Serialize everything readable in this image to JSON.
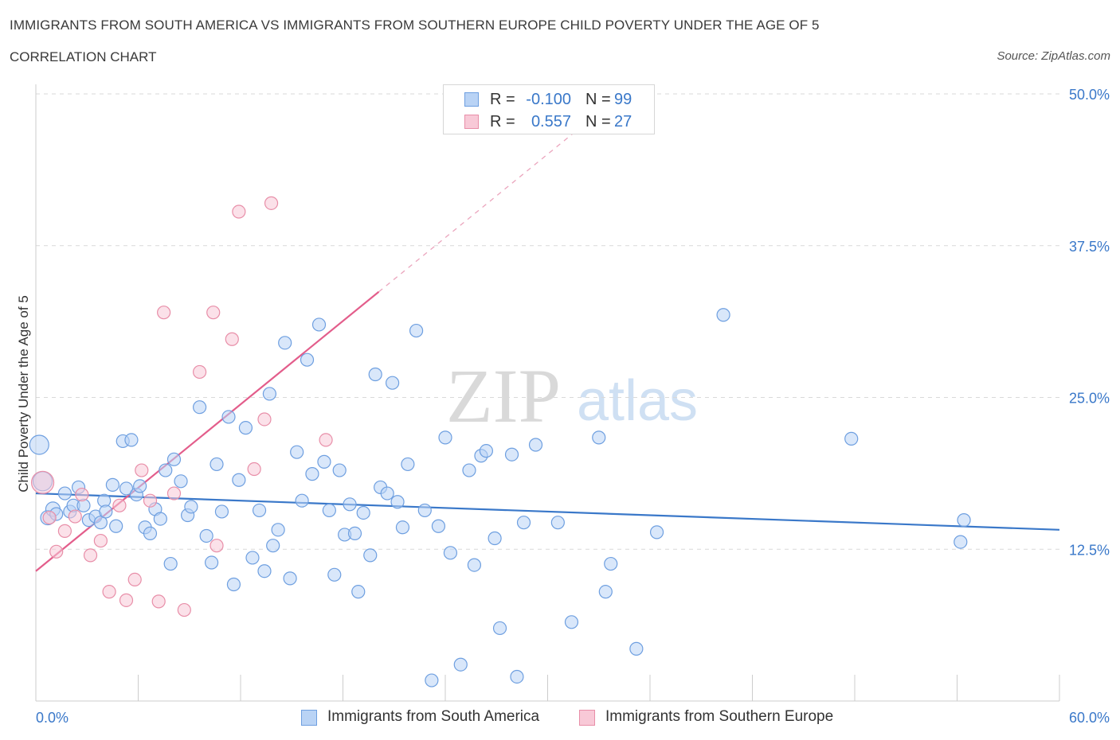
{
  "title": "IMMIGRANTS FROM SOUTH AMERICA VS IMMIGRANTS FROM SOUTHERN EUROPE CHILD POVERTY UNDER THE AGE OF 5",
  "subtitle": "CORRELATION CHART",
  "source": "Source: ZipAtlas.com",
  "watermark": {
    "zip": "ZIP",
    "atlas": "atlas"
  },
  "legend": {
    "r_label": "R =",
    "n_label": "N =",
    "series": [
      {
        "name": "Immigrants from South America",
        "r": "-0.100",
        "n": "99",
        "fill": "#b9d3f5",
        "stroke": "#6e9fe0"
      },
      {
        "name": "Immigrants from Southern Europe",
        "r": "0.557",
        "n": "27",
        "fill": "#f8c9d7",
        "stroke": "#e88ea8"
      }
    ]
  },
  "chart_data": {
    "type": "scatter",
    "title": "IMMIGRANTS FROM SOUTH AMERICA VS IMMIGRANTS FROM SOUTHERN EUROPE CHILD POVERTY UNDER THE AGE OF 5",
    "xlabel": "",
    "ylabel": "Child Poverty Under the Age of 5",
    "xlim": [
      0,
      60
    ],
    "ylim": [
      0,
      50
    ],
    "x_tick_labels": [
      "0.0%",
      "60.0%"
    ],
    "y_ticks": [
      12.5,
      25.0,
      37.5,
      50.0
    ],
    "y_tick_labels": [
      "12.5%",
      "25.0%",
      "37.5%",
      "50.0%"
    ],
    "grid": true,
    "series": [
      {
        "name": "Immigrants from South America",
        "color": "#3a78c9",
        "fill": "#b9d3f5",
        "trend": {
          "x0": 0,
          "y0": 17.1,
          "x1": 60,
          "y1": 14.1
        },
        "points": [
          [
            0.2,
            21.1,
            12
          ],
          [
            0.4,
            18.1,
            12
          ],
          [
            0.7,
            15.1,
            9
          ],
          [
            1.0,
            15.8,
            9
          ],
          [
            1.2,
            15.4,
            8
          ],
          [
            1.7,
            17.1,
            8
          ],
          [
            2.0,
            15.6,
            8
          ],
          [
            2.2,
            16.1,
            8
          ],
          [
            2.5,
            17.6,
            8
          ],
          [
            2.8,
            16.1,
            8
          ],
          [
            3.1,
            14.9,
            8
          ],
          [
            3.5,
            15.2,
            8
          ],
          [
            3.8,
            14.7,
            8
          ],
          [
            4.0,
            16.5,
            8
          ],
          [
            4.5,
            17.8,
            8
          ],
          [
            4.7,
            14.4,
            8
          ],
          [
            5.1,
            21.4,
            8
          ],
          [
            5.3,
            17.5,
            8
          ],
          [
            5.6,
            21.5,
            8
          ],
          [
            5.9,
            17.0,
            8
          ],
          [
            6.1,
            17.7,
            8
          ],
          [
            6.4,
            14.3,
            8
          ],
          [
            6.7,
            13.8,
            8
          ],
          [
            7.0,
            15.8,
            8
          ],
          [
            7.3,
            15.0,
            8
          ],
          [
            7.6,
            19.0,
            8
          ],
          [
            7.9,
            11.3,
            8
          ],
          [
            8.1,
            19.9,
            8
          ],
          [
            8.5,
            18.1,
            8
          ],
          [
            8.9,
            15.3,
            8
          ],
          [
            9.1,
            16.0,
            8
          ],
          [
            9.6,
            24.2,
            8
          ],
          [
            10.0,
            13.6,
            8
          ],
          [
            10.3,
            11.4,
            8
          ],
          [
            10.6,
            19.5,
            8
          ],
          [
            10.9,
            15.6,
            8
          ],
          [
            11.3,
            23.4,
            8
          ],
          [
            11.6,
            9.6,
            8
          ],
          [
            11.9,
            18.2,
            8
          ],
          [
            12.3,
            22.5,
            8
          ],
          [
            12.7,
            11.8,
            8
          ],
          [
            13.1,
            15.7,
            8
          ],
          [
            13.4,
            10.7,
            8
          ],
          [
            13.7,
            25.3,
            8
          ],
          [
            13.9,
            12.8,
            8
          ],
          [
            14.2,
            14.1,
            8
          ],
          [
            14.6,
            29.5,
            8
          ],
          [
            14.9,
            10.1,
            8
          ],
          [
            15.3,
            20.5,
            8
          ],
          [
            15.6,
            16.5,
            8
          ],
          [
            15.9,
            28.1,
            8
          ],
          [
            16.2,
            18.7,
            8
          ],
          [
            16.6,
            31.0,
            8
          ],
          [
            16.9,
            19.7,
            8
          ],
          [
            17.2,
            15.7,
            8
          ],
          [
            17.5,
            10.4,
            8
          ],
          [
            17.8,
            19.0,
            8
          ],
          [
            18.1,
            13.7,
            8
          ],
          [
            18.4,
            16.2,
            8
          ],
          [
            18.7,
            13.8,
            8
          ],
          [
            18.9,
            9.0,
            8
          ],
          [
            19.2,
            15.5,
            8
          ],
          [
            19.6,
            12.0,
            8
          ],
          [
            19.9,
            26.9,
            8
          ],
          [
            20.2,
            17.6,
            8
          ],
          [
            20.6,
            17.1,
            8
          ],
          [
            20.9,
            26.2,
            8
          ],
          [
            21.2,
            16.4,
            8
          ],
          [
            21.5,
            14.3,
            8
          ],
          [
            21.8,
            19.5,
            8
          ],
          [
            22.3,
            30.5,
            8
          ],
          [
            22.8,
            15.7,
            8
          ],
          [
            23.2,
            1.7,
            8
          ],
          [
            23.6,
            14.4,
            8
          ],
          [
            24.0,
            21.7,
            8
          ],
          [
            24.3,
            12.2,
            8
          ],
          [
            24.9,
            3.0,
            8
          ],
          [
            25.4,
            19.0,
            8
          ],
          [
            25.7,
            11.2,
            8
          ],
          [
            26.1,
            20.2,
            8
          ],
          [
            26.4,
            20.6,
            8
          ],
          [
            26.9,
            13.4,
            8
          ],
          [
            27.2,
            6.0,
            8
          ],
          [
            27.9,
            20.3,
            8
          ],
          [
            28.2,
            2.0,
            8
          ],
          [
            28.6,
            14.7,
            8
          ],
          [
            29.3,
            21.1,
            8
          ],
          [
            30.6,
            14.7,
            8
          ],
          [
            31.4,
            6.5,
            8
          ],
          [
            33.0,
            21.7,
            8
          ],
          [
            33.4,
            9.0,
            8
          ],
          [
            33.7,
            11.3,
            8
          ],
          [
            35.2,
            4.3,
            8
          ],
          [
            36.4,
            13.9,
            8
          ],
          [
            40.3,
            31.8,
            8
          ],
          [
            47.8,
            21.6,
            8
          ],
          [
            54.2,
            13.1,
            8
          ],
          [
            54.4,
            14.9,
            8
          ],
          [
            4.1,
            15.6,
            8
          ]
        ]
      },
      {
        "name": "Immigrants from Southern Europe",
        "color": "#e35d8b",
        "fill": "#f8c9d7",
        "trend": {
          "x0": 0,
          "y0": 10.7,
          "x1": 20.1,
          "y1": 33.7
        },
        "trend_dashed": {
          "x0": 20.1,
          "y0": 33.7,
          "x1": 33.2,
          "y1": 48.7
        },
        "points": [
          [
            0.4,
            18.0,
            14
          ],
          [
            0.8,
            15.1,
            8
          ],
          [
            1.2,
            12.3,
            8
          ],
          [
            1.7,
            14.0,
            8
          ],
          [
            2.3,
            15.2,
            8
          ],
          [
            2.7,
            17.0,
            8
          ],
          [
            3.2,
            12.0,
            8
          ],
          [
            3.8,
            13.2,
            8
          ],
          [
            4.3,
            9.0,
            8
          ],
          [
            4.9,
            16.1,
            8
          ],
          [
            5.3,
            8.3,
            8
          ],
          [
            5.8,
            10.0,
            8
          ],
          [
            6.2,
            19.0,
            8
          ],
          [
            6.7,
            16.5,
            8
          ],
          [
            7.2,
            8.2,
            8
          ],
          [
            7.5,
            32.0,
            8
          ],
          [
            8.1,
            17.1,
            8
          ],
          [
            8.7,
            7.5,
            8
          ],
          [
            9.6,
            27.1,
            8
          ],
          [
            10.4,
            32.0,
            8
          ],
          [
            10.6,
            12.8,
            8
          ],
          [
            11.5,
            29.8,
            8
          ],
          [
            11.9,
            40.3,
            8
          ],
          [
            12.8,
            19.1,
            8
          ],
          [
            13.4,
            23.2,
            8
          ],
          [
            13.8,
            41.0,
            8
          ],
          [
            17.0,
            21.5,
            8
          ]
        ]
      }
    ]
  }
}
